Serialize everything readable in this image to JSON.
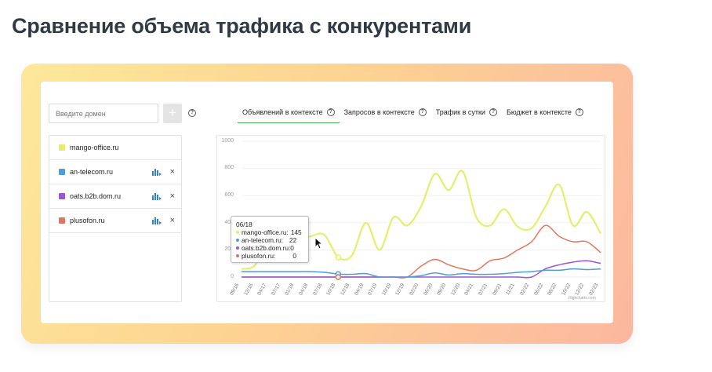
{
  "page": {
    "title": "Сравнение объема трафика с конкурентами"
  },
  "form": {
    "placeholder": "Введите домен",
    "add_label": "+",
    "help": "?"
  },
  "tabs": [
    {
      "label": "Объявлений в контексте",
      "active": true
    },
    {
      "label": "Запросов в контексте",
      "active": false
    },
    {
      "label": "Трафик в сутки",
      "active": false
    },
    {
      "label": "Бюджет в контексте",
      "active": false
    }
  ],
  "domains": [
    {
      "name": "mango-office.ru",
      "color": "#e6ee6e",
      "removable": false
    },
    {
      "name": "an-telecom.ru",
      "color": "#4e9ddf",
      "removable": true
    },
    {
      "name": "oats.b2b.dom.ru",
      "color": "#9b55d6",
      "removable": true
    },
    {
      "name": "plusofon.ru",
      "color": "#e0765e",
      "removable": true
    }
  ],
  "tooltip": {
    "title": "06/18",
    "rows": [
      {
        "name": "mango-office.ru:",
        "value": "145",
        "color": "#e6ee6e"
      },
      {
        "name": "an-telecom.ru:",
        "value": "22",
        "color": "#4e9ddf"
      },
      {
        "name": "oats.b2b.dom.ru:",
        "value": "0",
        "color": "#9b55d6"
      },
      {
        "name": "plusofon.ru:",
        "value": "0",
        "color": "#e0765e"
      }
    ]
  },
  "credits": "Highcharts.com",
  "chart_data": {
    "type": "line",
    "ylim": [
      0,
      1000
    ],
    "yticks": [
      "1000",
      "800",
      "600",
      "400",
      "200",
      "0"
    ],
    "x": [
      "09/16",
      "12/16",
      "03/17",
      "06/17",
      "09/17",
      "12/17",
      "03/18",
      "06/18",
      "09/18",
      "12/18",
      "03/19",
      "06/19",
      "09/19",
      "12/19",
      "03/20",
      "06/20",
      "09/20",
      "12/20",
      "03/21",
      "06/21",
      "09/21",
      "12/21",
      "03/22",
      "06/22",
      "09/22",
      "12/22",
      "03/23"
    ],
    "xtick_labels": [
      "09/16",
      "12/16",
      "04/17",
      "07/17",
      "01/18",
      "04/18",
      "07/18",
      "10/18",
      "12/18",
      "04/19",
      "07/19",
      "10/19",
      "12/19",
      "02/20",
      "06/20",
      "09/20",
      "12/20",
      "04/21",
      "07/21",
      "09/21",
      "11/21",
      "02/22",
      "06/22",
      "08/22",
      "10/22",
      "12/22",
      "02/23"
    ],
    "series": [
      {
        "name": "mango-office.ru",
        "color": "#e6ee6e",
        "values": [
          60,
          90,
          300,
          280,
          260,
          300,
          310,
          145,
          160,
          400,
          200,
          440,
          380,
          520,
          760,
          640,
          780,
          440,
          380,
          500,
          370,
          360,
          520,
          680,
          380,
          480,
          320
        ]
      },
      {
        "name": "an-telecom.ru",
        "color": "#4e9ddf",
        "values": [
          40,
          40,
          40,
          40,
          40,
          40,
          35,
          22,
          20,
          25,
          0,
          0,
          0,
          10,
          30,
          15,
          25,
          20,
          20,
          25,
          35,
          40,
          50,
          50,
          60,
          55,
          60
        ]
      },
      {
        "name": "oats.b2b.dom.ru",
        "color": "#9b55d6",
        "values": [
          0,
          0,
          0,
          0,
          0,
          0,
          0,
          0,
          0,
          0,
          0,
          0,
          0,
          0,
          0,
          0,
          0,
          0,
          0,
          0,
          0,
          0,
          60,
          90,
          110,
          120,
          100
        ]
      },
      {
        "name": "plusofon.ru",
        "color": "#e0765e",
        "values": [
          0,
          0,
          0,
          0,
          0,
          0,
          0,
          0,
          0,
          0,
          0,
          0,
          0,
          80,
          130,
          90,
          60,
          50,
          120,
          140,
          200,
          260,
          380,
          300,
          260,
          260,
          180
        ]
      }
    ]
  }
}
